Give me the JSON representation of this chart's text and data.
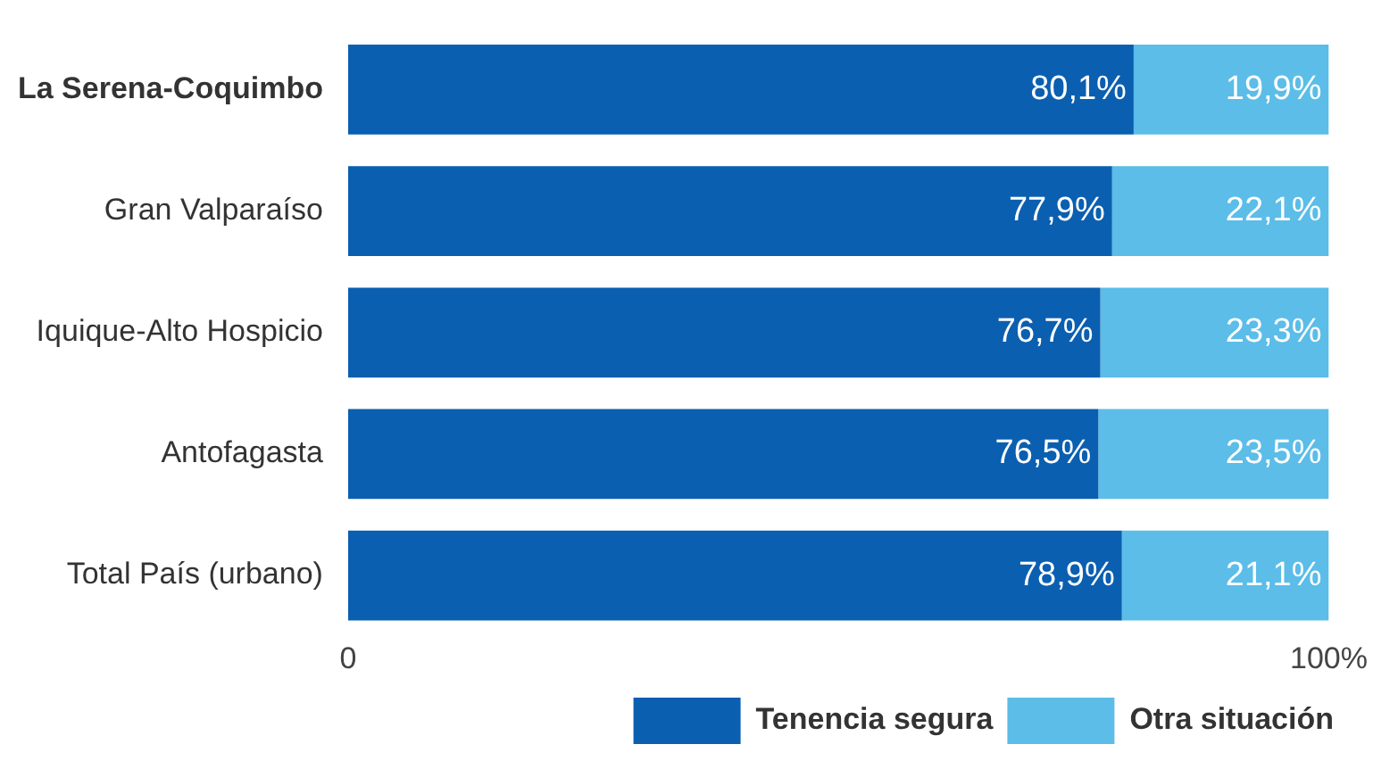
{
  "chart_data": {
    "type": "bar",
    "orientation": "horizontal",
    "stacked": true,
    "categories": [
      "La Serena-Coquimbo",
      "Gran Valparaíso",
      "Iquique-Alto Hospicio",
      "Antofagasta",
      "Total País (urbano)"
    ],
    "series": [
      {
        "name": "Tenencia segura",
        "color": "#0b5fb0",
        "values": [
          80.1,
          77.9,
          76.7,
          76.5,
          78.9
        ],
        "value_labels": [
          "80,1%",
          "77,9%",
          "76,7%",
          "76,5%",
          "78,9%"
        ]
      },
      {
        "name": "Otra situación",
        "color": "#5bbde8",
        "values": [
          19.9,
          22.1,
          23.3,
          23.5,
          21.1
        ],
        "value_labels": [
          "19,9%",
          "22,1%",
          "23,3%",
          "23,5%",
          "21,1%"
        ]
      }
    ],
    "xlim": [
      0,
      100
    ],
    "xticks": [
      0,
      {
        "value": 100,
        "label": "100%"
      }
    ],
    "grid": false,
    "legend": "bottom right"
  }
}
